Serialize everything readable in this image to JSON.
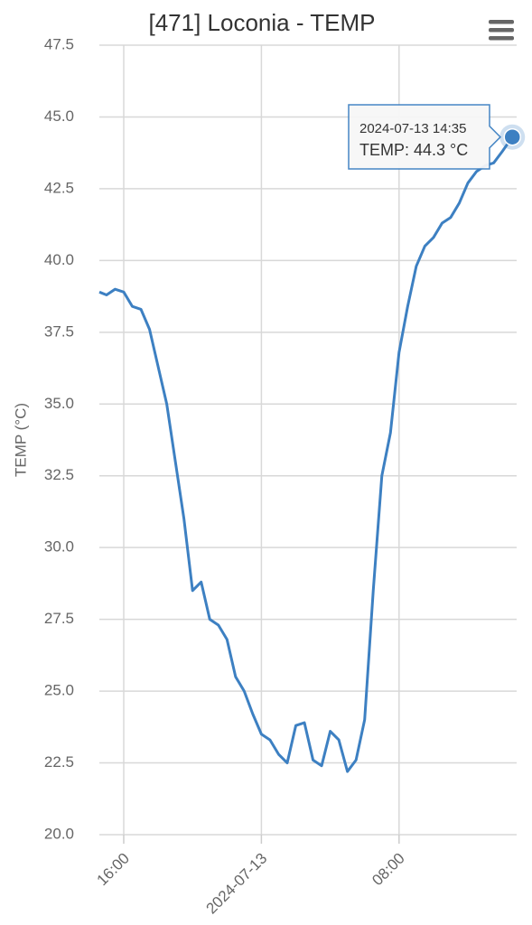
{
  "chart_data": {
    "type": "line",
    "title": "[471] Loconia - TEMP",
    "y_label": "TEMP (°C)",
    "x": [
      "2024-07-12 14:35",
      "2024-07-12 15:00",
      "2024-07-12 15:30",
      "2024-07-12 16:00",
      "2024-07-12 16:30",
      "2024-07-12 17:00",
      "2024-07-12 17:30",
      "2024-07-12 18:00",
      "2024-07-12 18:30",
      "2024-07-12 19:00",
      "2024-07-12 19:30",
      "2024-07-12 20:00",
      "2024-07-12 20:30",
      "2024-07-12 21:00",
      "2024-07-12 21:30",
      "2024-07-12 22:00",
      "2024-07-12 22:30",
      "2024-07-12 23:00",
      "2024-07-12 23:30",
      "2024-07-13 00:00",
      "2024-07-13 00:30",
      "2024-07-13 01:00",
      "2024-07-13 01:30",
      "2024-07-13 02:00",
      "2024-07-13 02:30",
      "2024-07-13 03:00",
      "2024-07-13 03:30",
      "2024-07-13 04:00",
      "2024-07-13 04:30",
      "2024-07-13 05:00",
      "2024-07-13 05:30",
      "2024-07-13 06:00",
      "2024-07-13 06:30",
      "2024-07-13 07:00",
      "2024-07-13 07:30",
      "2024-07-13 08:00",
      "2024-07-13 08:30",
      "2024-07-13 09:00",
      "2024-07-13 09:30",
      "2024-07-13 10:00",
      "2024-07-13 10:30",
      "2024-07-13 11:00",
      "2024-07-13 11:30",
      "2024-07-13 12:00",
      "2024-07-13 12:30",
      "2024-07-13 13:00",
      "2024-07-13 13:30",
      "2024-07-13 14:00",
      "2024-07-13 14:35"
    ],
    "series": [
      {
        "name": "TEMP",
        "color": "#3d80c2",
        "values": [
          38.9,
          38.8,
          39.0,
          38.9,
          38.4,
          38.3,
          37.6,
          36.3,
          35.0,
          33.0,
          31.0,
          28.5,
          28.8,
          27.5,
          27.3,
          26.8,
          25.5,
          25.0,
          24.2,
          23.5,
          23.3,
          22.8,
          22.5,
          23.8,
          23.9,
          22.6,
          22.4,
          23.6,
          23.3,
          22.2,
          22.6,
          24.0,
          28.5,
          32.5,
          34.0,
          36.8,
          38.4,
          39.8,
          40.5,
          40.8,
          41.3,
          41.5,
          42.0,
          42.7,
          43.1,
          43.3,
          43.4,
          43.8,
          44.3
        ]
      }
    ],
    "tooltip": {
      "text": "TEMP: 44.3 °C"
    },
    "xlim": [
      "2024-07-12 14:35",
      "2024-07-13 14:50"
    ],
    "xticks": [
      {
        "value": "2024-07-12 16:00",
        "label": "16:00"
      },
      {
        "value": "2024-07-13 00:00",
        "label": "2024-07-13"
      },
      {
        "value": "2024-07-13 08:00",
        "label": "08:00"
      }
    ],
    "ylim": [
      20,
      47.5
    ],
    "yticks": [
      {
        "value": 20,
        "label": "20.0"
      },
      22.5,
      {
        "value": 25,
        "label": "25.0"
      },
      27.5,
      {
        "value": 30,
        "label": "30.0"
      },
      32.5,
      {
        "value": 35,
        "label": "35.0"
      },
      37.5,
      {
        "value": 40,
        "label": "40.0"
      },
      42.5,
      {
        "value": 45,
        "label": "45.0"
      },
      47.5
    ],
    "grid": true
  }
}
